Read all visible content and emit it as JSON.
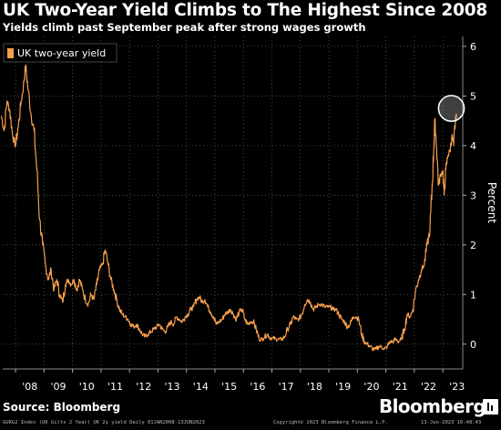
{
  "header": {
    "title": "UK Two-Year Yield Climbs to The Highest Since 2008",
    "subtitle": "Yields climb past September peak after strong wages growth"
  },
  "colors": {
    "background": "#000000",
    "series": "#f6a04d",
    "grid": "#5a5a5a",
    "text": "#ffffff",
    "highlight": "#ffffff"
  },
  "chart_data": {
    "type": "line",
    "ylabel": "Percent",
    "ylim": [
      -0.5,
      6.2
    ],
    "yticks": [
      0,
      1,
      2,
      3,
      4,
      5,
      6
    ],
    "grid": true,
    "legend_position": "top-left",
    "x_tick_labels": [
      "'08",
      "'09",
      "'10",
      "'11",
      "'12",
      "'13",
      "'14",
      "'15",
      "'16",
      "'17",
      "'18",
      "'19",
      "'20",
      "'21",
      "'22",
      "'23"
    ],
    "x_tick_years": [
      2008,
      2009,
      2010,
      2011,
      2012,
      2013,
      2014,
      2015,
      2016,
      2017,
      2018,
      2019,
      2020,
      2021,
      2022,
      2023
    ],
    "series": [
      {
        "name": "UK two-year yield",
        "points": [
          [
            2007.5,
            4.6
          ],
          [
            2007.6,
            4.3
          ],
          [
            2007.7,
            4.9
          ],
          [
            2007.8,
            4.7
          ],
          [
            2007.9,
            4.2
          ],
          [
            2008.0,
            4.0
          ],
          [
            2008.1,
            4.4
          ],
          [
            2008.2,
            4.9
          ],
          [
            2008.3,
            5.3
          ],
          [
            2008.35,
            5.6
          ],
          [
            2008.45,
            5.1
          ],
          [
            2008.55,
            4.6
          ],
          [
            2008.65,
            4.3
          ],
          [
            2008.75,
            3.5
          ],
          [
            2008.85,
            2.5
          ],
          [
            2008.95,
            2.0
          ],
          [
            2009.05,
            1.6
          ],
          [
            2009.15,
            1.3
          ],
          [
            2009.25,
            1.5
          ],
          [
            2009.35,
            1.1
          ],
          [
            2009.45,
            1.3
          ],
          [
            2009.55,
            1.0
          ],
          [
            2009.65,
            0.85
          ],
          [
            2009.75,
            1.2
          ],
          [
            2009.85,
            1.3
          ],
          [
            2009.95,
            1.2
          ],
          [
            2010.05,
            1.3
          ],
          [
            2010.15,
            1.1
          ],
          [
            2010.25,
            1.3
          ],
          [
            2010.35,
            1.1
          ],
          [
            2010.45,
            0.9
          ],
          [
            2010.55,
            0.8
          ],
          [
            2010.65,
            1.0
          ],
          [
            2010.75,
            0.9
          ],
          [
            2010.85,
            1.2
          ],
          [
            2010.95,
            1.5
          ],
          [
            2011.05,
            1.6
          ],
          [
            2011.15,
            1.9
          ],
          [
            2011.25,
            1.6
          ],
          [
            2011.35,
            1.3
          ],
          [
            2011.45,
            1.1
          ],
          [
            2011.55,
            0.9
          ],
          [
            2011.65,
            0.7
          ],
          [
            2011.75,
            0.6
          ],
          [
            2011.85,
            0.55
          ],
          [
            2011.95,
            0.5
          ],
          [
            2012.05,
            0.4
          ],
          [
            2012.15,
            0.35
          ],
          [
            2012.25,
            0.4
          ],
          [
            2012.35,
            0.3
          ],
          [
            2012.45,
            0.2
          ],
          [
            2012.55,
            0.15
          ],
          [
            2012.65,
            0.2
          ],
          [
            2012.75,
            0.25
          ],
          [
            2012.85,
            0.3
          ],
          [
            2012.95,
            0.35
          ],
          [
            2013.05,
            0.4
          ],
          [
            2013.15,
            0.3
          ],
          [
            2013.25,
            0.25
          ],
          [
            2013.35,
            0.35
          ],
          [
            2013.45,
            0.45
          ],
          [
            2013.55,
            0.4
          ],
          [
            2013.65,
            0.55
          ],
          [
            2013.75,
            0.5
          ],
          [
            2013.85,
            0.45
          ],
          [
            2013.95,
            0.55
          ],
          [
            2014.05,
            0.6
          ],
          [
            2014.15,
            0.7
          ],
          [
            2014.25,
            0.75
          ],
          [
            2014.35,
            0.9
          ],
          [
            2014.45,
            0.95
          ],
          [
            2014.55,
            0.85
          ],
          [
            2014.65,
            0.9
          ],
          [
            2014.75,
            0.75
          ],
          [
            2014.85,
            0.65
          ],
          [
            2014.95,
            0.55
          ],
          [
            2015.05,
            0.4
          ],
          [
            2015.15,
            0.45
          ],
          [
            2015.25,
            0.5
          ],
          [
            2015.35,
            0.6
          ],
          [
            2015.45,
            0.65
          ],
          [
            2015.55,
            0.7
          ],
          [
            2015.65,
            0.6
          ],
          [
            2015.75,
            0.5
          ],
          [
            2015.85,
            0.65
          ],
          [
            2015.95,
            0.7
          ],
          [
            2016.05,
            0.5
          ],
          [
            2016.15,
            0.4
          ],
          [
            2016.25,
            0.45
          ],
          [
            2016.35,
            0.45
          ],
          [
            2016.45,
            0.3
          ],
          [
            2016.55,
            0.1
          ],
          [
            2016.65,
            0.1
          ],
          [
            2016.75,
            0.15
          ],
          [
            2016.85,
            0.2
          ],
          [
            2016.95,
            0.12
          ],
          [
            2017.05,
            0.12
          ],
          [
            2017.15,
            0.1
          ],
          [
            2017.25,
            0.1
          ],
          [
            2017.35,
            0.1
          ],
          [
            2017.45,
            0.15
          ],
          [
            2017.55,
            0.3
          ],
          [
            2017.65,
            0.4
          ],
          [
            2017.75,
            0.55
          ],
          [
            2017.85,
            0.5
          ],
          [
            2017.95,
            0.5
          ],
          [
            2018.05,
            0.6
          ],
          [
            2018.15,
            0.8
          ],
          [
            2018.25,
            0.9
          ],
          [
            2018.35,
            0.85
          ],
          [
            2018.45,
            0.7
          ],
          [
            2018.55,
            0.75
          ],
          [
            2018.65,
            0.8
          ],
          [
            2018.75,
            0.8
          ],
          [
            2018.85,
            0.75
          ],
          [
            2018.95,
            0.75
          ],
          [
            2019.05,
            0.75
          ],
          [
            2019.15,
            0.7
          ],
          [
            2019.25,
            0.7
          ],
          [
            2019.35,
            0.6
          ],
          [
            2019.45,
            0.5
          ],
          [
            2019.55,
            0.45
          ],
          [
            2019.65,
            0.35
          ],
          [
            2019.75,
            0.4
          ],
          [
            2019.85,
            0.55
          ],
          [
            2019.95,
            0.55
          ],
          [
            2020.05,
            0.5
          ],
          [
            2020.15,
            0.2
          ],
          [
            2020.25,
            0.05
          ],
          [
            2020.35,
            0.0
          ],
          [
            2020.45,
            -0.05
          ],
          [
            2020.55,
            -0.1
          ],
          [
            2020.65,
            -0.1
          ],
          [
            2020.75,
            -0.05
          ],
          [
            2020.85,
            -0.05
          ],
          [
            2020.95,
            -0.1
          ],
          [
            2021.05,
            -0.05
          ],
          [
            2021.15,
            0.05
          ],
          [
            2021.25,
            0.05
          ],
          [
            2021.35,
            0.1
          ],
          [
            2021.45,
            0.05
          ],
          [
            2021.55,
            0.1
          ],
          [
            2021.65,
            0.3
          ],
          [
            2021.75,
            0.6
          ],
          [
            2021.85,
            0.55
          ],
          [
            2021.95,
            0.7
          ],
          [
            2022.05,
            1.1
          ],
          [
            2022.15,
            1.3
          ],
          [
            2022.25,
            1.5
          ],
          [
            2022.35,
            1.6
          ],
          [
            2022.45,
            2.0
          ],
          [
            2022.55,
            2.3
          ],
          [
            2022.62,
            3.1
          ],
          [
            2022.68,
            3.9
          ],
          [
            2022.72,
            4.5
          ],
          [
            2022.78,
            4.0
          ],
          [
            2022.85,
            3.2
          ],
          [
            2022.92,
            3.4
          ],
          [
            2023.0,
            3.5
          ],
          [
            2023.05,
            3.0
          ],
          [
            2023.1,
            3.5
          ],
          [
            2023.18,
            3.8
          ],
          [
            2023.25,
            3.9
          ],
          [
            2023.32,
            4.2
          ],
          [
            2023.38,
            4.0
          ],
          [
            2023.44,
            4.5
          ],
          [
            2023.48,
            4.6
          ]
        ]
      }
    ],
    "annotation": {
      "type": "circle",
      "x": 2023.3,
      "y": 4.75,
      "radius_years": 0.45
    }
  },
  "footer": {
    "source": "Source: Bloomberg",
    "brand": "Bloomberg",
    "left_text": "GUKG2 Index (UK Gilts 2 Year) UK 2y yield  Daily  01JAN2008-13JUN2023",
    "middle_text": "Copyright© 2023 Bloomberg Finance L.P.",
    "right_text": "13-Jun-2023 16:48:43"
  }
}
